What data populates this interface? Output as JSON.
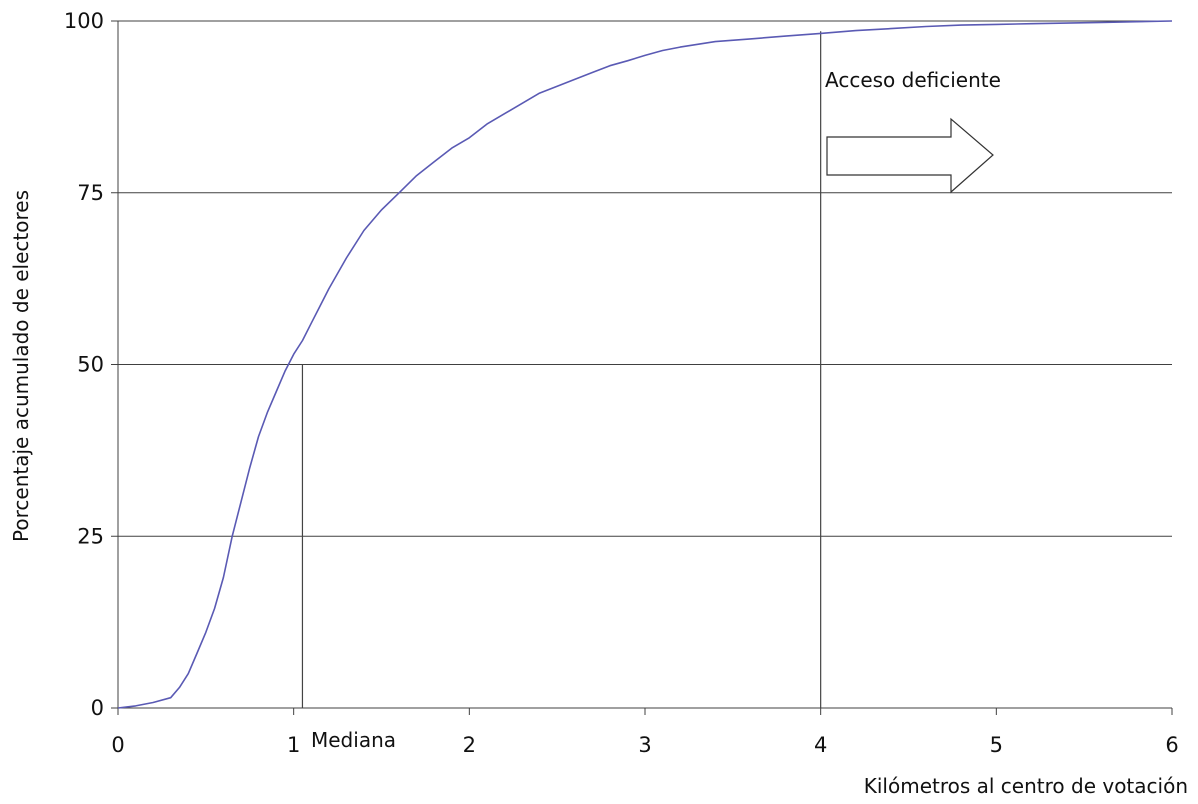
{
  "chart_data": {
    "type": "line",
    "title": "",
    "xlabel": "Kilómetros al centro de votación",
    "ylabel": "Porcentaje acumulado de electores",
    "xlim": [
      0,
      6
    ],
    "ylim": [
      0,
      100
    ],
    "x_ticks": [
      "0",
      "1",
      "2",
      "3",
      "4",
      "5",
      "6"
    ],
    "y_ticks": [
      "0",
      "25",
      "50",
      "75",
      "100"
    ],
    "grid": "horizontal",
    "line_color": "#5a5ab4",
    "series": [
      {
        "x": [
          0,
          0.1,
          0.2,
          0.3,
          0.35,
          0.4,
          0.45,
          0.5,
          0.55,
          0.6,
          0.65,
          0.7,
          0.75,
          0.8,
          0.85,
          0.9,
          0.95,
          1.0,
          1.05,
          1.1,
          1.15,
          1.2,
          1.3,
          1.4,
          1.5,
          1.6,
          1.7,
          1.8,
          1.9,
          2.0,
          2.1,
          2.2,
          2.3,
          2.4,
          2.5,
          2.6,
          2.7,
          2.8,
          2.9,
          3.0,
          3.1,
          3.2,
          3.4,
          3.6,
          3.8,
          4.0,
          4.2,
          4.4,
          4.6,
          4.8,
          5.0,
          5.2,
          5.4,
          5.6,
          5.8,
          6.0
        ],
        "y": [
          0,
          0.3,
          0.8,
          1.5,
          3,
          5,
          8,
          11,
          14.5,
          19,
          25,
          30,
          35,
          39.5,
          43,
          46,
          49,
          51.5,
          53.5,
          56,
          58.5,
          61,
          65.5,
          69.5,
          72.5,
          75,
          77.5,
          79.5,
          81.5,
          83,
          85,
          86.5,
          88,
          89.5,
          90.5,
          91.5,
          92.5,
          93.5,
          94.2,
          95,
          95.7,
          96.2,
          97,
          97.4,
          97.8,
          98.2,
          98.6,
          98.9,
          99.2,
          99.4,
          99.5,
          99.6,
          99.7,
          99.8,
          99.9,
          100
        ]
      }
    ],
    "vertical_lines": [
      {
        "x": 1.05,
        "y_top": 50
      },
      {
        "x": 4,
        "y_top": 98.5
      }
    ],
    "annotations": {
      "median_label": "Mediana",
      "poor_access_label": "Acceso deficiente"
    }
  }
}
